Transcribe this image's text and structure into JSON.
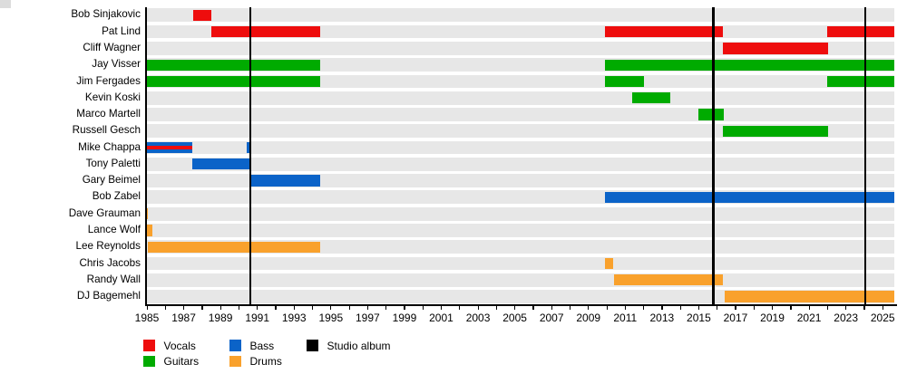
{
  "chart_data": {
    "type": "timeline",
    "title": "",
    "x_axis": {
      "start": 1985,
      "end": 2025.63,
      "tick_step": 1,
      "label_step": 2,
      "last_tick": 2025,
      "tick_labels": [
        1985,
        1987,
        1989,
        1991,
        1993,
        1995,
        1997,
        1999,
        2001,
        2003,
        2005,
        2007,
        2009,
        2011,
        2013,
        2015,
        2017,
        2019,
        2021,
        2023,
        2025
      ]
    },
    "role_colors": {
      "vocals": "#ee0d0d",
      "guitars": "#00ab00",
      "bass": "#0b63c8",
      "drums": "#f9a12c",
      "album": "#000000"
    },
    "album_release_years": [
      1990.63,
      2015.78,
      2024.05
    ],
    "members": [
      {
        "name": "Bob Sinjakovic",
        "bars": [
          {
            "role": "vocals",
            "start": 1987.5,
            "end": 1988.5
          }
        ]
      },
      {
        "name": "Pat Lind",
        "bars": [
          {
            "role": "vocals",
            "start": 1988.5,
            "end": 1994.4
          },
          {
            "role": "vocals",
            "start": 2009.9,
            "end": 2016.33
          },
          {
            "role": "vocals",
            "start": 2022.0,
            "end": 2025.63
          }
        ]
      },
      {
        "name": "Cliff Wagner",
        "bars": [
          {
            "role": "vocals",
            "start": 2016.33,
            "end": 2022.05
          }
        ]
      },
      {
        "name": "Jay Visser",
        "bars": [
          {
            "role": "guitars",
            "start": 1985.0,
            "end": 1994.4
          },
          {
            "role": "guitars",
            "start": 2009.9,
            "end": 2025.63
          }
        ]
      },
      {
        "name": "Jim Fergades",
        "bars": [
          {
            "role": "guitars",
            "start": 1985.0,
            "end": 1994.4
          },
          {
            "role": "guitars",
            "start": 2009.9,
            "end": 2012.0
          },
          {
            "role": "guitars",
            "start": 2022.0,
            "end": 2025.63
          }
        ]
      },
      {
        "name": "Kevin Koski",
        "bars": [
          {
            "role": "guitars",
            "start": 2011.37,
            "end": 2013.47
          }
        ]
      },
      {
        "name": "Marco Martell",
        "bars": [
          {
            "role": "guitars",
            "start": 2015.0,
            "end": 2016.37
          }
        ]
      },
      {
        "name": "Russell Gesch",
        "bars": [
          {
            "role": "guitars",
            "start": 2016.33,
            "end": 2022.05
          }
        ]
      },
      {
        "name": "Mike Chappa",
        "bars": [
          {
            "role": "bass",
            "stripe_role": "vocals",
            "start": 1985.0,
            "end": 1987.48
          },
          {
            "role": "bass",
            "start": 1990.44,
            "end": 1990.61
          }
        ]
      },
      {
        "name": "Tony Paletti",
        "bars": [
          {
            "role": "bass",
            "start": 1987.48,
            "end": 1990.58
          }
        ]
      },
      {
        "name": "Gary Beimel",
        "bars": [
          {
            "role": "bass",
            "start": 1990.67,
            "end": 1994.4
          }
        ]
      },
      {
        "name": "Bob Zabel",
        "bars": [
          {
            "role": "bass",
            "start": 2009.9,
            "end": 2025.63
          }
        ]
      },
      {
        "name": "Dave Grauman",
        "bars": [
          {
            "role": "drums",
            "start": 1985.0,
            "end": 1985.07
          }
        ]
      },
      {
        "name": "Lance Wolf",
        "bars": [
          {
            "role": "drums",
            "start": 1985.0,
            "end": 1985.3
          }
        ]
      },
      {
        "name": "Lee Reynolds",
        "bars": [
          {
            "role": "drums",
            "start": 1985.05,
            "end": 1994.4
          }
        ]
      },
      {
        "name": "Chris Jacobs",
        "bars": [
          {
            "role": "drums",
            "start": 2009.9,
            "end": 2010.32
          }
        ]
      },
      {
        "name": "Randy Wall",
        "bars": [
          {
            "role": "drums",
            "start": 2010.4,
            "end": 2016.3
          }
        ]
      },
      {
        "name": "DJ Bagemehl",
        "bars": [
          {
            "role": "drums",
            "start": 2016.43,
            "end": 2025.63
          }
        ]
      }
    ],
    "legend": [
      {
        "role": "vocals",
        "label": "Vocals"
      },
      {
        "role": "guitars",
        "label": "Guitars"
      },
      {
        "role": "bass",
        "label": "Bass"
      },
      {
        "role": "drums",
        "label": "Drums"
      },
      {
        "role": "album",
        "label": "Studio album"
      }
    ],
    "legend_position": "bottom-left",
    "grid": false,
    "row_band_color": "#e7e7e7"
  }
}
